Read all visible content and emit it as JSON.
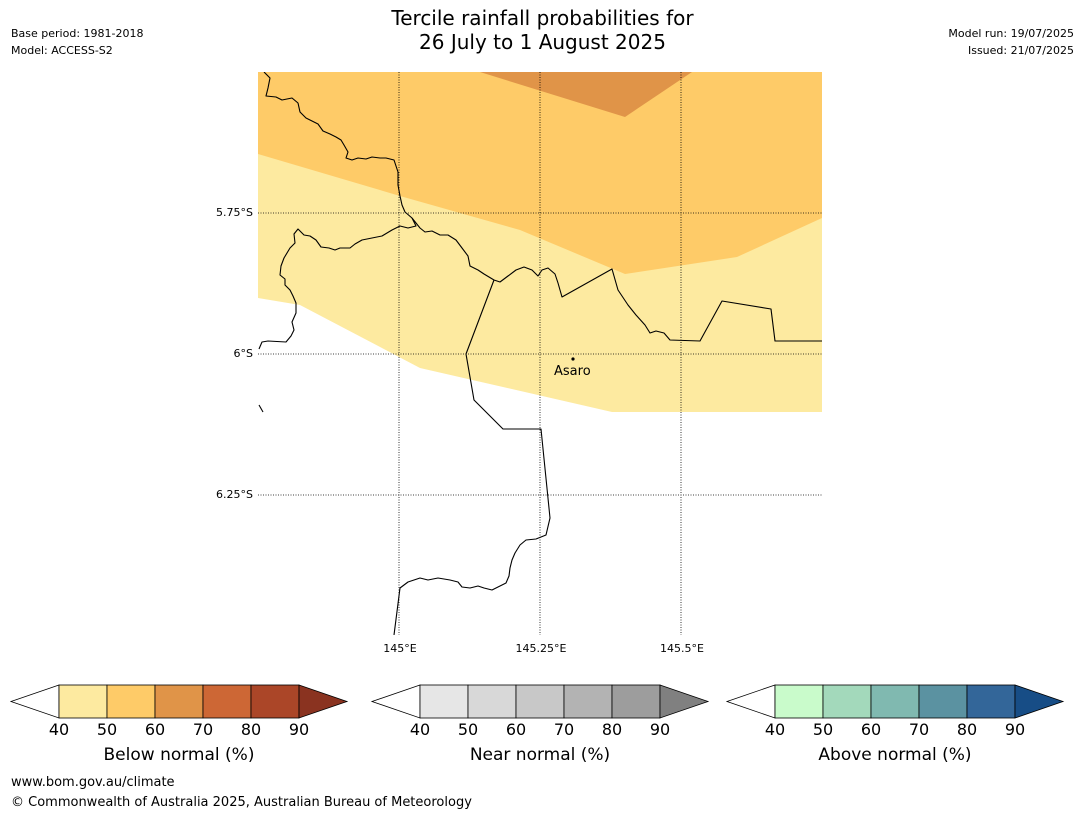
{
  "meta_left": {
    "base_period": "Base period: 1981-2018",
    "model": "Model: ACCESS-S2"
  },
  "meta_right": {
    "model_run": "Model run: 19/07/2025",
    "issued": "Issued: 21/07/2025"
  },
  "title": {
    "line1": "Tercile rainfall probabilities for",
    "line2": "26 July to 1 August 2025"
  },
  "map": {
    "lat_labels": [
      "5.75°S",
      "6°S",
      "6.25°S"
    ],
    "lon_labels": [
      "145°E",
      "145.25°E",
      "145.5°E"
    ],
    "place": {
      "name": "Asaro"
    },
    "shading_colors": {
      "below_40_50": "#fdeaa0",
      "below_50_60": "#fecb68",
      "below_60_70": "#e09448"
    }
  },
  "colorbars": [
    {
      "id": "below",
      "label": "Below normal (%)",
      "ticks": [
        "40",
        "50",
        "60",
        "70",
        "80",
        "90"
      ],
      "low_arrow": "#ffffff",
      "colors": [
        "#fdeaa0",
        "#fecb68",
        "#e09448",
        "#cd6735",
        "#ab4628"
      ],
      "high_arrow": "#8a3320"
    },
    {
      "id": "near",
      "label": "Near normal (%)",
      "ticks": [
        "40",
        "50",
        "60",
        "70",
        "80",
        "90"
      ],
      "low_arrow": "#ffffff",
      "colors": [
        "#e6e6e6",
        "#d8d8d8",
        "#c8c8c8",
        "#b3b3b3",
        "#9d9d9d"
      ],
      "high_arrow": "#808080"
    },
    {
      "id": "above",
      "label": "Above normal (%)",
      "ticks": [
        "40",
        "50",
        "60",
        "70",
        "80",
        "90"
      ],
      "low_arrow": "#ffffff",
      "colors": [
        "#c9fbcb",
        "#a3d9bb",
        "#80b9b0",
        "#5b92a1",
        "#336699"
      ],
      "high_arrow": "#174d86"
    }
  ],
  "footer": {
    "url": "www.bom.gov.au/climate",
    "copyright": "© Commonwealth of Australia 2025, Australian Bureau of Meteorology"
  }
}
